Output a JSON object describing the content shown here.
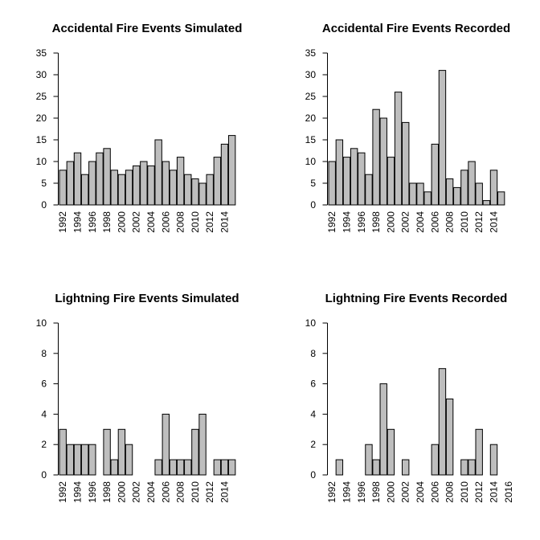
{
  "chart_data": [
    {
      "type": "bar",
      "title": "Accidental Fire Events Simulated",
      "ylim": [
        0,
        35
      ],
      "yticks": [
        0,
        5,
        10,
        15,
        20,
        25,
        30,
        35
      ],
      "categories": [
        1992,
        1993,
        1994,
        1995,
        1996,
        1997,
        1998,
        1999,
        2000,
        2001,
        2002,
        2003,
        2004,
        2005,
        2006,
        2007,
        2008,
        2009,
        2010,
        2011,
        2012,
        2013,
        2014,
        2015
      ],
      "values": [
        8,
        10,
        12,
        7,
        10,
        12,
        13,
        8,
        7,
        8,
        9,
        10,
        9,
        15,
        10,
        8,
        11,
        7,
        6,
        5,
        7,
        11,
        14,
        16
      ],
      "xtick_labels": [
        "1992",
        "1994",
        "1996",
        "1998",
        "2000",
        "2002",
        "2004",
        "2006",
        "2008",
        "2010",
        "2012",
        "2014"
      ]
    },
    {
      "type": "bar",
      "title": "Accidental Fire Events Recorded",
      "ylim": [
        0,
        35
      ],
      "yticks": [
        0,
        5,
        10,
        15,
        20,
        25,
        30,
        35
      ],
      "categories": [
        1992,
        1993,
        1994,
        1995,
        1996,
        1997,
        1998,
        1999,
        2000,
        2001,
        2002,
        2003,
        2004,
        2005,
        2006,
        2007,
        2008,
        2009,
        2010,
        2011,
        2012,
        2013,
        2014,
        2015
      ],
      "values": [
        10,
        15,
        11,
        13,
        12,
        7,
        22,
        20,
        11,
        26,
        19,
        5,
        5,
        3,
        14,
        31,
        6,
        4,
        8,
        10,
        5,
        1,
        8,
        3
      ],
      "xtick_labels": [
        "1992",
        "1994",
        "1996",
        "1998",
        "2000",
        "2002",
        "2004",
        "2006",
        "2008",
        "2010",
        "2012",
        "2014"
      ]
    },
    {
      "type": "bar",
      "title": "Lightning Fire Events Simulated",
      "ylim": [
        0,
        10
      ],
      "yticks": [
        0,
        2,
        4,
        6,
        8,
        10
      ],
      "categories": [
        1992,
        1993,
        1994,
        1995,
        1996,
        1997,
        1998,
        1999,
        2000,
        2001,
        2002,
        2003,
        2004,
        2005,
        2006,
        2007,
        2008,
        2009,
        2010,
        2011,
        2012,
        2013,
        2014,
        2015
      ],
      "values": [
        3,
        2,
        2,
        2,
        2,
        0,
        3,
        1,
        3,
        2,
        0,
        0,
        0,
        1,
        4,
        1,
        1,
        1,
        3,
        4,
        0,
        1,
        1,
        1
      ],
      "xtick_labels": [
        "1992",
        "1994",
        "1996",
        "1998",
        "2000",
        "2002",
        "2004",
        "2006",
        "2008",
        "2010",
        "2012",
        "2014"
      ]
    },
    {
      "type": "bar",
      "title": "Lightning Fire Events Recorded",
      "ylim": [
        0,
        10
      ],
      "yticks": [
        0,
        2,
        4,
        6,
        8,
        10
      ],
      "categories": [
        1992,
        1993,
        1994,
        1995,
        1996,
        1997,
        1998,
        1999,
        2000,
        2001,
        2002,
        2003,
        2004,
        2005,
        2006,
        2007,
        2008,
        2009,
        2010,
        2011,
        2012,
        2013,
        2014,
        2015,
        2016
      ],
      "values": [
        0,
        1,
        0,
        0,
        0,
        2,
        1,
        6,
        3,
        0,
        1,
        0,
        0,
        0,
        2,
        7,
        5,
        0,
        1,
        1,
        3,
        0,
        2,
        0,
        0
      ],
      "xtick_labels": [
        "1992",
        "1994",
        "1996",
        "1998",
        "2000",
        "2002",
        "2004",
        "2006",
        "2008",
        "2010",
        "2012",
        "2014",
        "2016"
      ]
    }
  ]
}
